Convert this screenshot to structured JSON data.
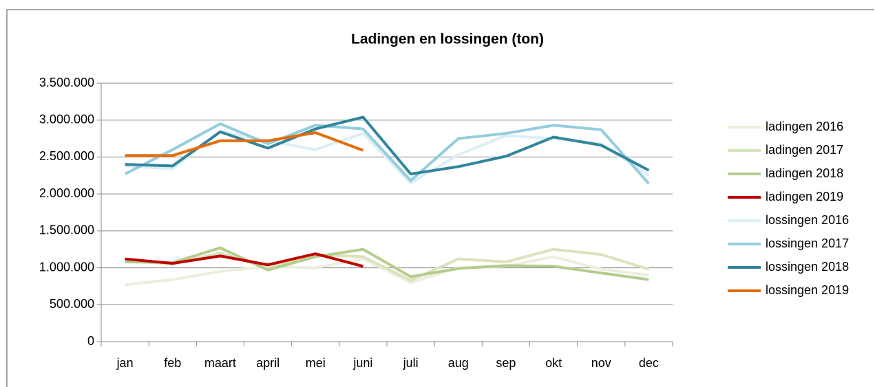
{
  "chart_data": {
    "type": "line",
    "title": "Ladingen en lossingen (ton)",
    "categories": [
      "jan",
      "feb",
      "maart",
      "april",
      "mei",
      "juni",
      "juli",
      "aug",
      "sep",
      "okt",
      "nov",
      "dec"
    ],
    "series": [
      {
        "name": "ladingen 2016",
        "color": "#eceedd",
        "values": [
          770000,
          840000,
          950000,
          1020000,
          1000000,
          1120000,
          800000,
          1000000,
          1020000,
          1150000,
          980000,
          900000
        ]
      },
      {
        "name": "ladingen 2017",
        "color": "#d8e4bc",
        "values": [
          1100000,
          1050000,
          1200000,
          1000000,
          1180000,
          1150000,
          830000,
          1120000,
          1080000,
          1250000,
          1180000,
          980000
        ]
      },
      {
        "name": "ladingen 2018",
        "color": "#b3cd8c",
        "values": [
          1080000,
          1070000,
          1270000,
          970000,
          1150000,
          1250000,
          880000,
          990000,
          1030000,
          1020000,
          930000,
          840000
        ]
      },
      {
        "name": "ladingen 2019",
        "color": "#c00000",
        "values": [
          1120000,
          1060000,
          1160000,
          1040000,
          1190000,
          1020000,
          null,
          null,
          null,
          null,
          null,
          null
        ]
      },
      {
        "name": "lossingen 2016",
        "color": "#dbeef4",
        "values": [
          2380000,
          2340000,
          2850000,
          2720000,
          2600000,
          2820000,
          2150000,
          2530000,
          2790000,
          2750000,
          2680000,
          2250000
        ]
      },
      {
        "name": "lossingen 2017",
        "color": "#93cddd",
        "values": [
          2270000,
          2600000,
          2950000,
          2680000,
          2930000,
          2880000,
          2180000,
          2750000,
          2820000,
          2930000,
          2870000,
          2140000
        ]
      },
      {
        "name": "lossingen 2018",
        "color": "#31859c",
        "values": [
          2400000,
          2380000,
          2840000,
          2620000,
          2880000,
          3040000,
          2270000,
          2370000,
          2510000,
          2770000,
          2660000,
          2320000
        ]
      },
      {
        "name": "lossingen 2019",
        "color": "#e46c0a",
        "values": [
          2520000,
          2520000,
          2720000,
          2720000,
          2830000,
          2590000,
          null,
          null,
          null,
          null,
          null,
          null
        ]
      }
    ],
    "ylim": [
      0,
      3500000
    ],
    "yticks": [
      0,
      {
        "value": 500000,
        "label": "500.000"
      },
      {
        "value": 1000000,
        "label": "1.000.000"
      },
      {
        "value": 1500000,
        "label": "1.500.000"
      },
      {
        "value": 2000000,
        "label": "2.000.000"
      },
      {
        "value": 2500000,
        "label": "2.500.000"
      },
      {
        "value": 3000000,
        "label": "3.000.000"
      },
      {
        "value": 3500000,
        "label": "3.500.000"
      }
    ],
    "grid": true,
    "legend": "right"
  }
}
